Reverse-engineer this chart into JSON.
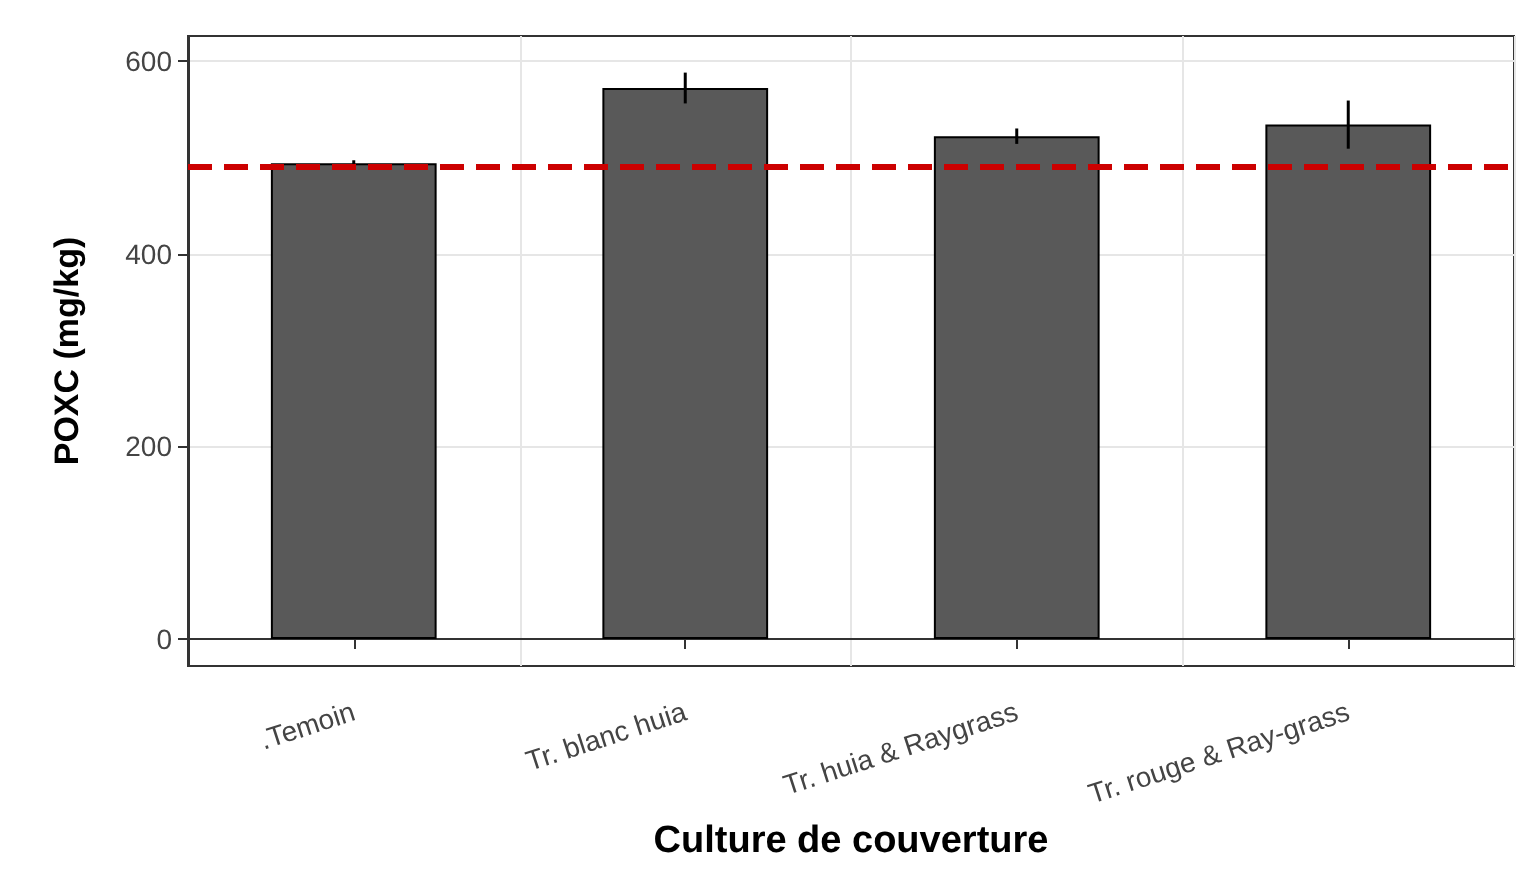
{
  "chart_data": {
    "type": "bar",
    "xlabel": "Culture de couverture",
    "ylabel": "POXC (mg/kg)",
    "categories": [
      ".Temoin",
      "Tr. blanc huia",
      "Tr. huia & Raygrass",
      "Tr. rouge & Ray-grass"
    ],
    "values": [
      494,
      572,
      522,
      534
    ],
    "errors": [
      3,
      16,
      8,
      25
    ],
    "color": "#595959",
    "ylim": [
      -28,
      626
    ],
    "yticks": [
      0,
      200,
      400,
      600
    ],
    "grid": true,
    "ref_lines": [
      {
        "axis": "y",
        "value": 491,
        "color": "#cc0000",
        "line_style": "dashed"
      }
    ]
  }
}
